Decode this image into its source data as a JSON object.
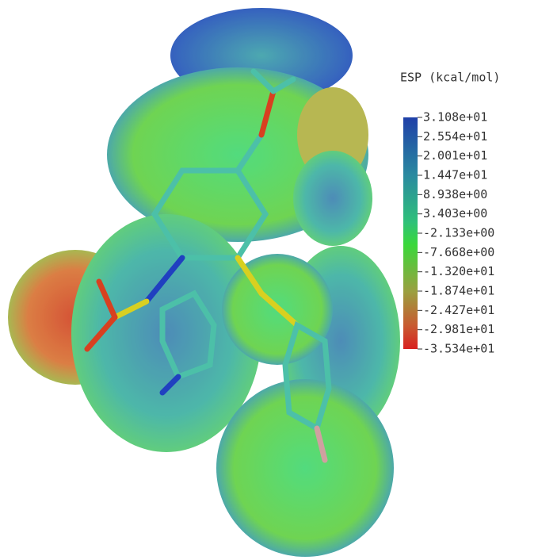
{
  "colorbar": {
    "title": "ESP (kcal/mol)",
    "labels": [
      "3.108e+01",
      "2.554e+01",
      "2.001e+01",
      "1.447e+01",
      "8.938e+00",
      "3.403e+00",
      "-2.133e+00",
      "-7.668e+00",
      "-1.320e+01",
      "-1.874e+01",
      "-2.427e+01",
      "-2.981e+01",
      "-3.534e+01"
    ]
  }
}
